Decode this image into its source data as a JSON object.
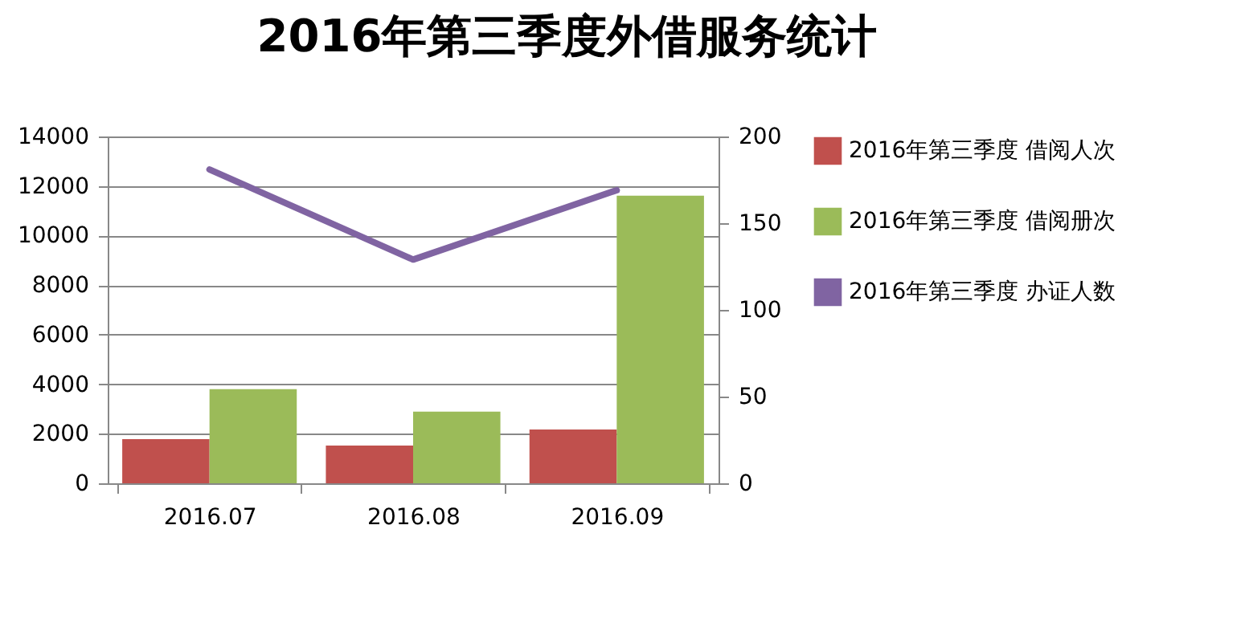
{
  "chart_data": {
    "type": "bar",
    "title": "2016年第三季度外借服务统计",
    "categories": [
      "2016.07",
      "2016.08",
      "2016.09"
    ],
    "series": [
      {
        "name": "2016年第三季度 借阅人次",
        "color": "#c0504d",
        "values": [
          1780,
          1520,
          2170
        ]
      },
      {
        "name": "2016年第三季度 借阅册次",
        "color": "#9bbb59",
        "values": [
          3800,
          2890,
          11610
        ]
      },
      {
        "name": "2016年第三季度 办证人数",
        "type": "line",
        "axis": "y2",
        "color": "#8064a2",
        "values": [
          181,
          129,
          169
        ]
      }
    ],
    "ylim": [
      0,
      14000
    ],
    "yticks": [
      0,
      2000,
      4000,
      6000,
      8000,
      10000,
      12000,
      14000
    ],
    "y2lim": [
      0,
      200
    ],
    "y2ticks": [
      0,
      50,
      100,
      150,
      200
    ],
    "grid": "y",
    "legend": "right"
  }
}
